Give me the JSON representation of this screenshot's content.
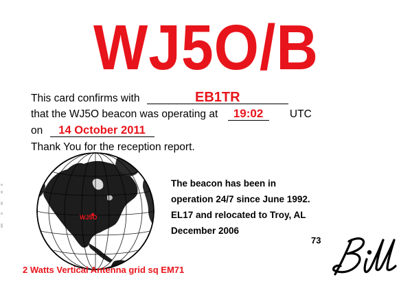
{
  "card": {
    "callsign": "WJ5O/B",
    "line1_text": "This card confirms with",
    "line1_value": "EB1TR",
    "line2_text": "that the WJ5O beacon was operating at",
    "line2_value": "19:02",
    "line2_suffix": "UTC",
    "line3_text": "on",
    "line3_value": "14 October 2011",
    "line4_text": "Thank You for the reception report."
  },
  "info": {
    "lines": [
      "The beacon has been in",
      "operation 24/7 since June 1992.",
      "EL17 and relocated to Troy, AL",
      "December 2006"
    ]
  },
  "globe": {
    "marker_label": "WJ5O"
  },
  "signoff": {
    "code": "73",
    "signature": "Bill"
  },
  "footer": {
    "text": "2 Watts Vertical Antenna grid sq EM71"
  },
  "colors": {
    "accent": "#e8141b",
    "text": "#000000",
    "background": "#ffffff"
  }
}
